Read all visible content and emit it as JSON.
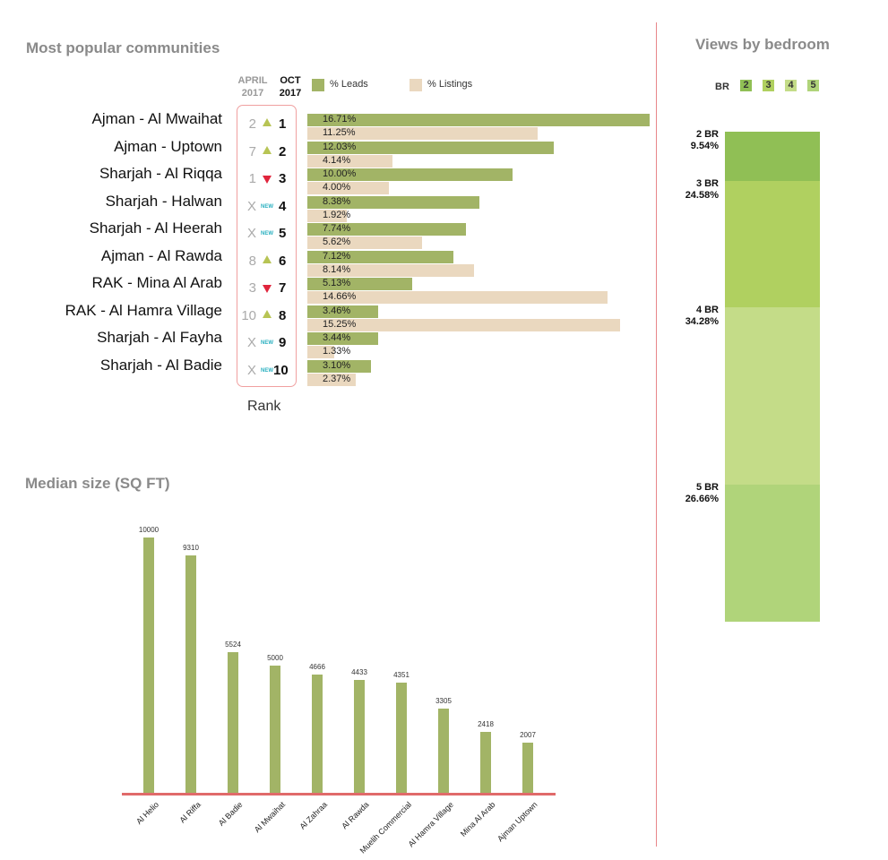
{
  "popular": {
    "title": "Most popular communities",
    "header_april": "APRIL\n2017",
    "header_april_l1": "APRIL",
    "header_april_l2": "2017",
    "header_oct_l1": "OCT",
    "header_oct_l2": "2017",
    "rank_label": "Rank",
    "new_label": "NEW",
    "legend": {
      "leads": "% Leads",
      "listings": "% Listings"
    },
    "colors": {
      "leads": "#a2b466",
      "listings": "#ead8bf",
      "up": "#b7c454",
      "down": "#e0243c",
      "new": "#2ab0c0"
    }
  },
  "chart_data": [
    {
      "type": "bar",
      "title": "Most popular communities",
      "categories": [
        "Ajman - Al Mwaihat",
        "Ajman - Uptown",
        "Sharjah - Al Riqqa",
        "Sharjah - Halwan",
        "Sharjah - Al Heerah",
        "Ajman - Al Rawda",
        "RAK - Mina Al Arab",
        "RAK - Al Hamra Village",
        "Sharjah - Al Fayha",
        "Sharjah - Al Badie"
      ],
      "series": [
        {
          "name": "% Leads",
          "values": [
            16.71,
            12.03,
            10.0,
            8.38,
            7.74,
            7.12,
            5.13,
            3.46,
            3.44,
            3.1
          ],
          "labels": [
            "16.71%",
            "12.03%",
            "10.00%",
            "8.38%",
            "7.74%",
            "7.12%",
            "5.13%",
            "3.46%",
            "3.44%",
            "3.10%"
          ]
        },
        {
          "name": "% Listings",
          "values": [
            11.25,
            4.14,
            4.0,
            1.92,
            5.62,
            8.14,
            14.66,
            15.25,
            1.33,
            2.37
          ],
          "labels": [
            "11.25%",
            "4.14%",
            "4.00%",
            "1.92%",
            "5.62%",
            "8.14%",
            "14.66%",
            "15.25%",
            "1.33%",
            "2.37%"
          ]
        }
      ],
      "rank_april": [
        "2",
        "7",
        "1",
        "X",
        "X",
        "8",
        "3",
        "10",
        "X",
        "X"
      ],
      "rank_oct": [
        "1",
        "2",
        "3",
        "4",
        "5",
        "6",
        "7",
        "8",
        "9",
        "10"
      ],
      "rank_change": [
        "up",
        "up",
        "down",
        "new",
        "new",
        "up",
        "down",
        "up",
        "new",
        "new"
      ],
      "legend": "top"
    },
    {
      "type": "bar",
      "title": "Views by bedroom",
      "stacked": true,
      "categories": [
        "2 BR",
        "3 BR",
        "4 BR",
        "5 BR"
      ],
      "values": [
        9.54,
        24.58,
        34.28,
        26.66
      ],
      "labels": [
        "9.54%",
        "24.58%",
        "34.28%",
        "26.66%"
      ],
      "colors": [
        "#90bf55",
        "#b0d060",
        "#c4dc88",
        "#b0d47a"
      ],
      "legend_title": "BR",
      "legend_items": [
        "2",
        "3",
        "4",
        "5"
      ],
      "legend": "top"
    },
    {
      "type": "bar",
      "title": "Median size (SQ FT)",
      "categories": [
        "Al Helio",
        "Al Riffa",
        "Al Badie",
        "Al Mwaihat",
        "Al Zahraa",
        "Al Rawda",
        "Muelih Commercial",
        "Al Hamra Village",
        "Mina Al Arab",
        "Ajman Uptown"
      ],
      "values": [
        10000,
        9310,
        5524,
        5000,
        4666,
        4433,
        4351,
        3305,
        2418,
        2007
      ],
      "ylim": [
        0,
        10000
      ],
      "color": "#a2b466",
      "axis_color": "#e06a6a"
    }
  ]
}
